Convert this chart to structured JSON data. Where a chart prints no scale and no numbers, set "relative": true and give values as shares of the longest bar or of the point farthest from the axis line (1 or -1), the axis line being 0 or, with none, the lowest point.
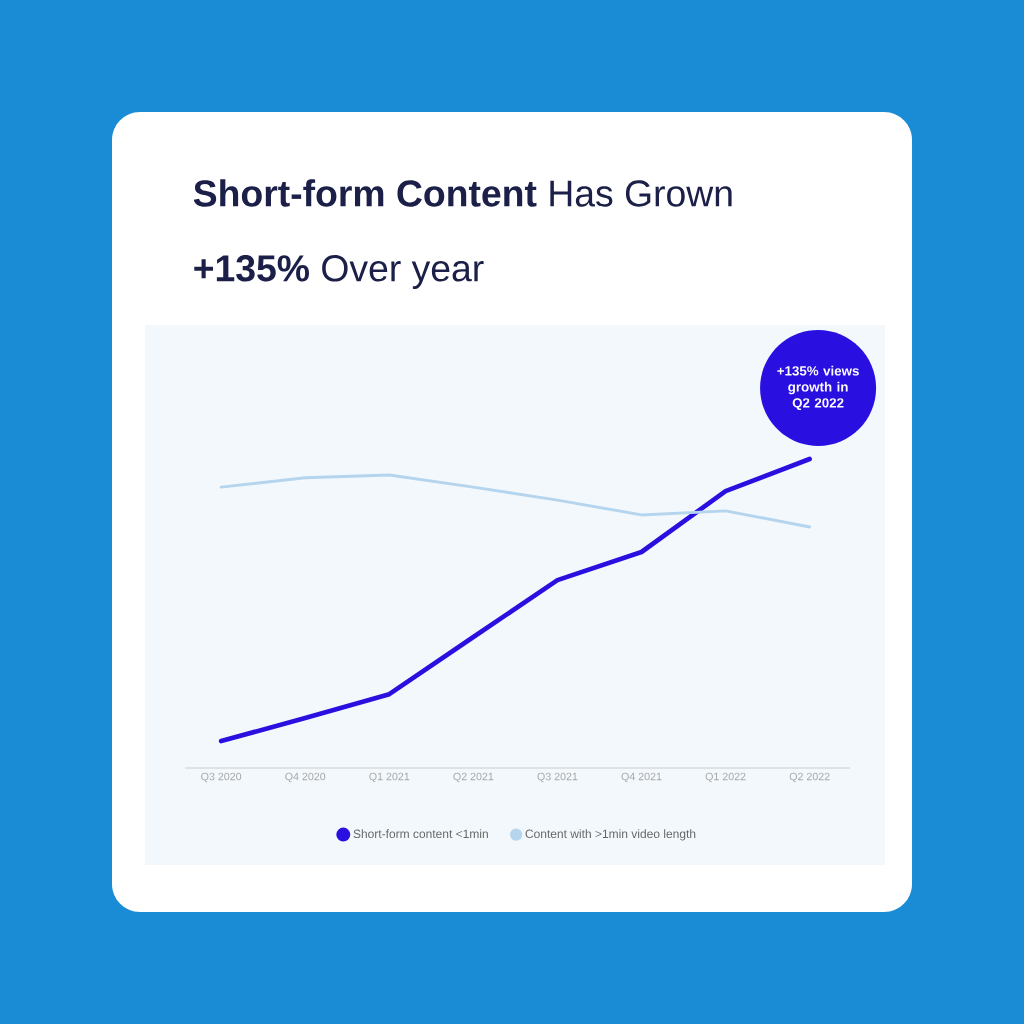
{
  "chart_data": {
    "type": "line",
    "title": "**Short-form Content** Has Grown",
    "subtitle": "**+135%** Over year",
    "categories": [
      "Q3 2020",
      "Q4 2020",
      "Q1 2021",
      "Q2 2021",
      "Q3 2021",
      "Q4 2021",
      "Q1 2022",
      "Q2 2022"
    ],
    "series": [
      {
        "name": "Short-form content <1min",
        "color": "#2a10e0",
        "values": [
          0.087,
          0.162,
          0.239,
          0.424,
          0.608,
          0.699,
          0.896,
          1.0
        ]
      },
      {
        "name": "Content with >1min video length",
        "color": "#b5d5ee",
        "values": [
          0.909,
          0.939,
          0.948,
          0.909,
          0.867,
          0.819,
          0.832,
          0.78
        ]
      }
    ],
    "relative": true,
    "grid": false,
    "legend": "bottom",
    "tick_labels": "x",
    "marker": "none",
    "line_style": "solid",
    "annotations": [
      "+135% views growth in Q2 2022"
    ]
  }
}
